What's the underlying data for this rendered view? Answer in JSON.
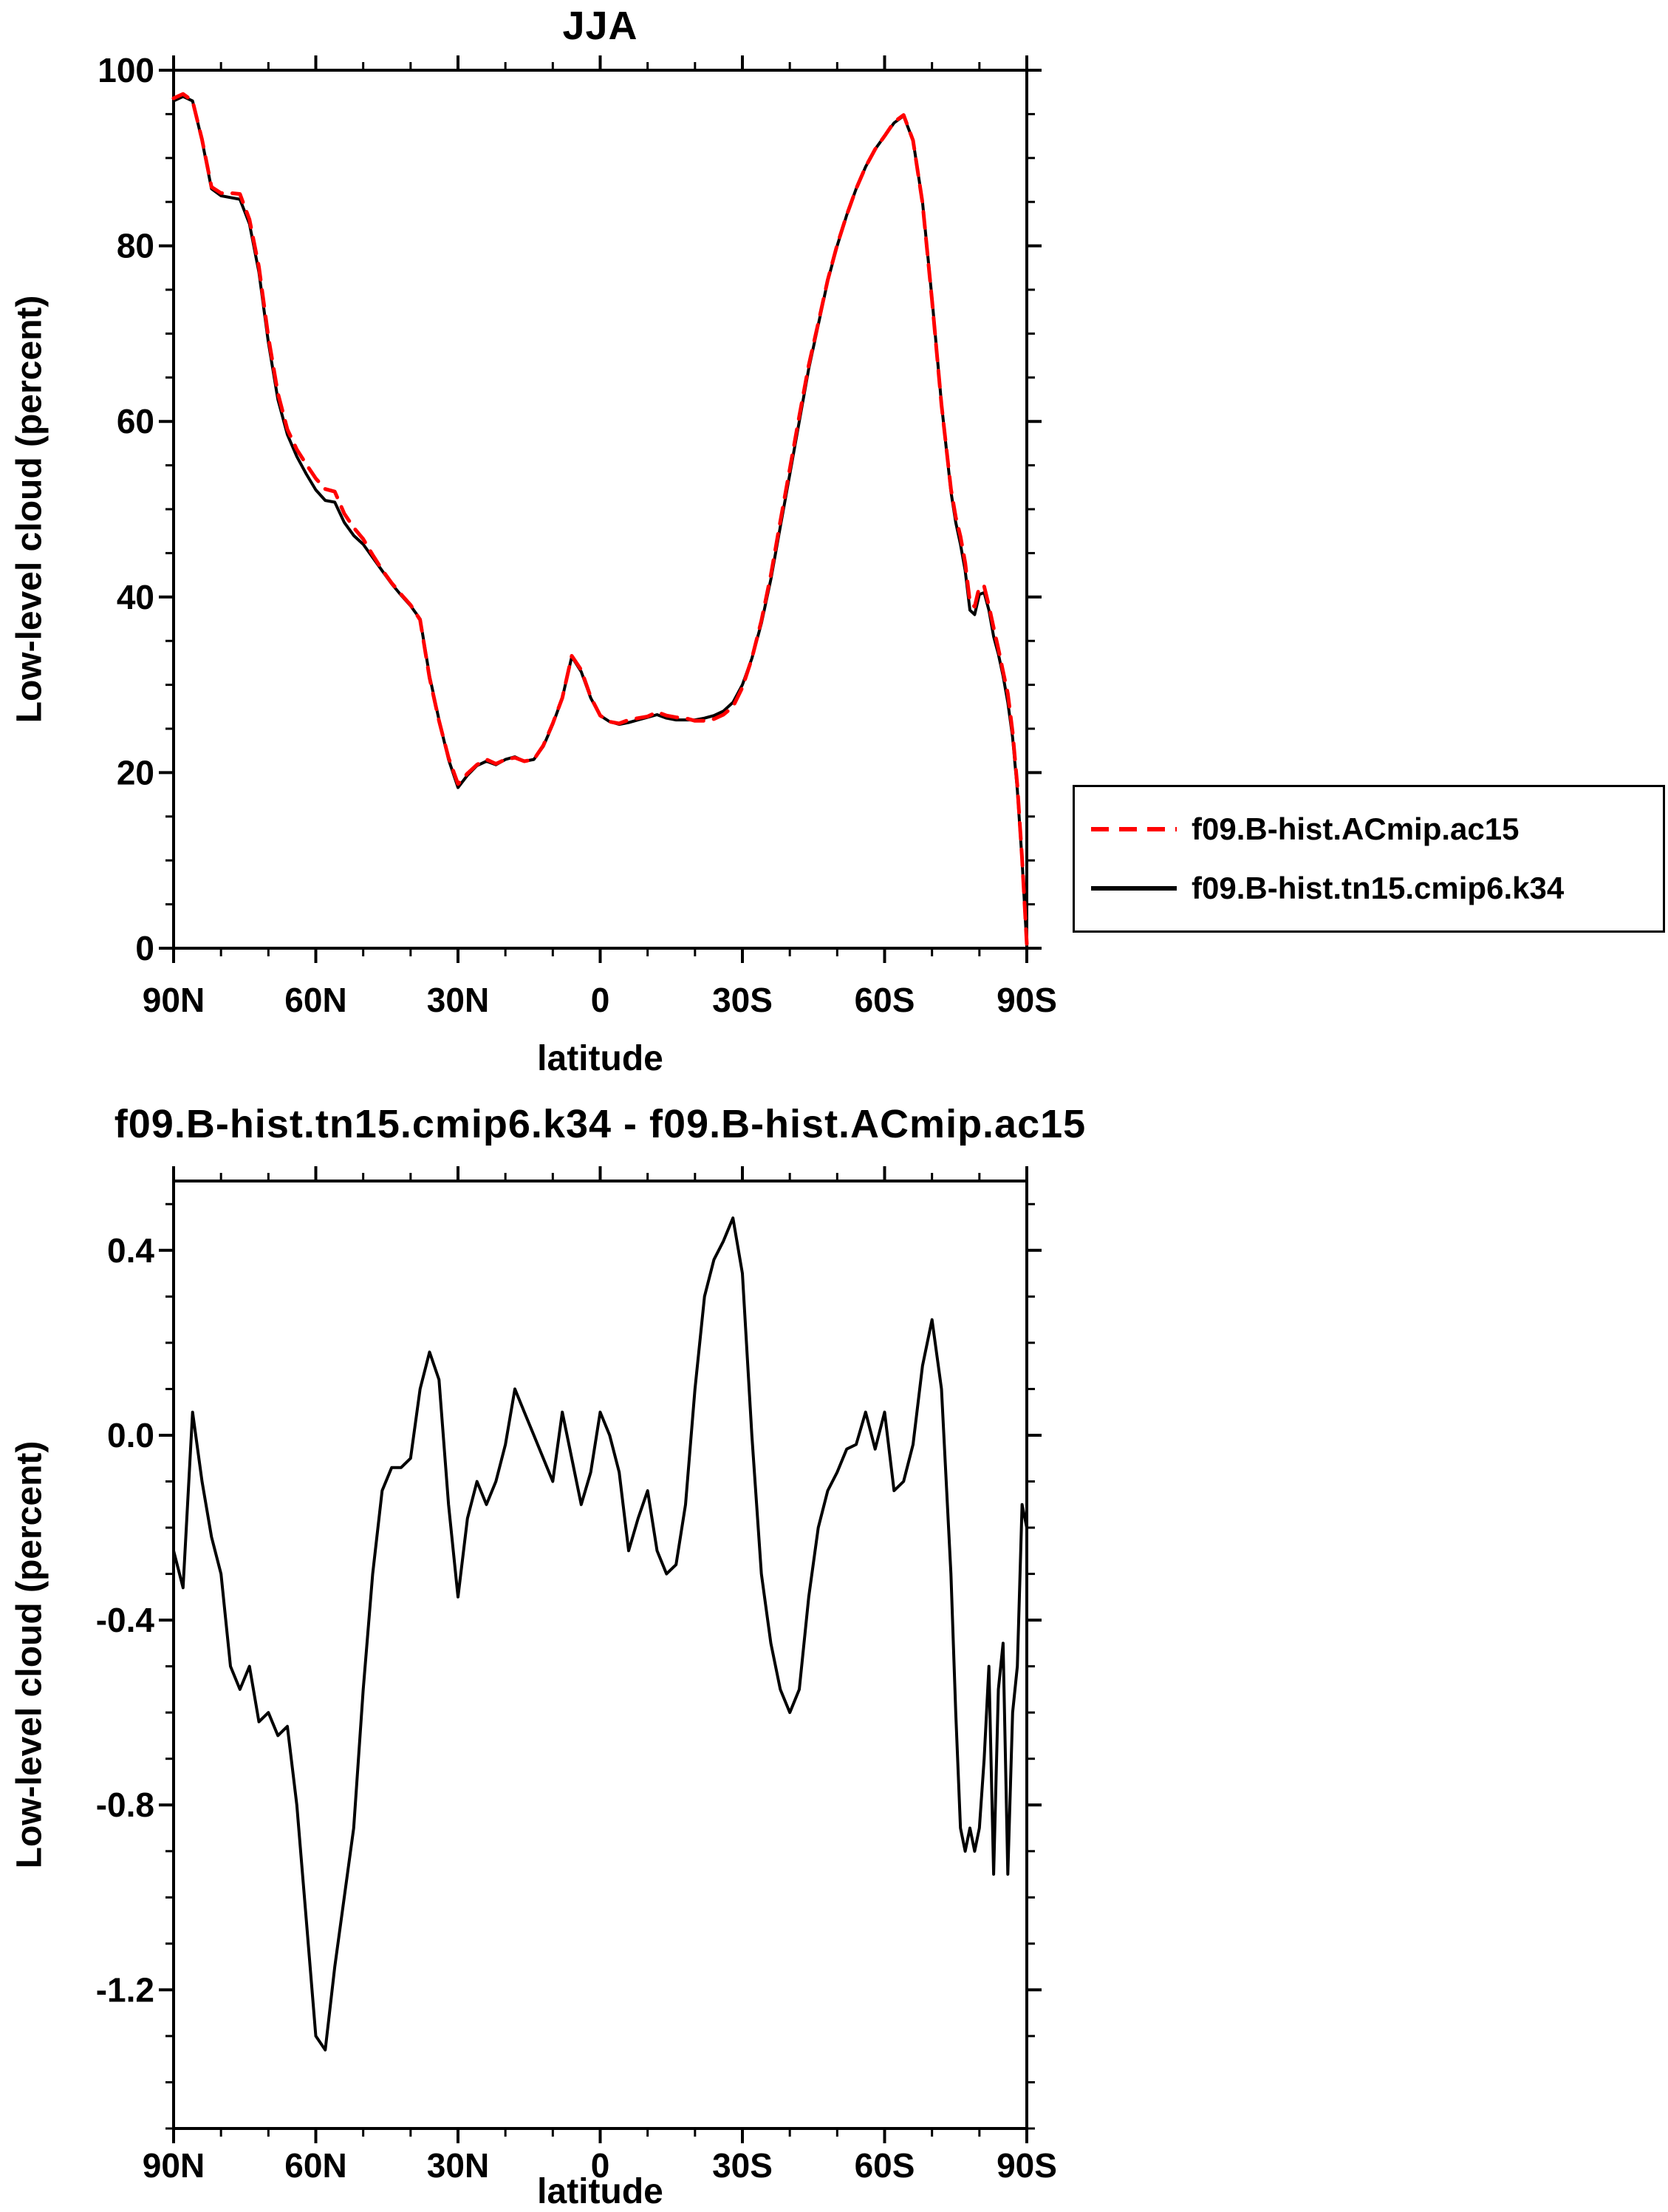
{
  "page": {
    "background": "#ffffff"
  },
  "top_chart": {
    "title": "JJA",
    "ylabel": "Low-level cloud (percent)",
    "xlabel": "latitude"
  },
  "bottom_chart": {
    "title": "f09.B-hist.tn15.cmip6.k34 - f09.B-hist.ACmip.ac15",
    "ylabel": "Low-level cloud (percent)",
    "xlabel": "latitude"
  },
  "legend": {
    "entries": [
      {
        "label": "f09.B-hist.ACmip.ac15",
        "color": "#ff0000",
        "style": "dashed"
      },
      {
        "label": "f09.B-hist.tn15.cmip6.k34",
        "color": "#000000",
        "style": "solid"
      }
    ]
  },
  "chart_data": [
    {
      "type": "line",
      "title": "JJA",
      "xlabel": "latitude",
      "ylabel": "Low-level cloud (percent)",
      "grid": false,
      "legend_position": "right-outside",
      "xlim": [
        90,
        -90
      ],
      "ylim": [
        0,
        100
      ],
      "xticks": [
        90,
        60,
        30,
        0,
        -30,
        -60,
        -90
      ],
      "xtick_labels": [
        "90N",
        "60N",
        "30N",
        "0",
        "30S",
        "60S",
        "90S"
      ],
      "yticks": [
        0,
        20,
        40,
        60,
        80,
        100
      ],
      "ytick_labels": [
        "0",
        "20",
        "40",
        "60",
        "80",
        "100"
      ],
      "x_minor_step": 10,
      "y_minor_step": 5,
      "x": [
        90,
        88,
        86,
        84,
        82,
        80,
        78,
        76,
        74,
        72,
        70,
        68,
        66,
        64,
        62,
        60,
        58,
        56,
        54,
        52,
        50,
        48,
        46,
        44,
        42,
        40,
        38,
        36,
        34,
        32,
        30,
        28,
        26,
        24,
        22,
        20,
        18,
        16,
        14,
        12,
        10,
        8,
        6,
        4,
        2,
        0,
        -2,
        -4,
        -6,
        -8,
        -10,
        -12,
        -14,
        -16,
        -18,
        -20,
        -22,
        -24,
        -26,
        -28,
        -30,
        -32,
        -34,
        -36,
        -38,
        -40,
        -42,
        -44,
        -46,
        -48,
        -50,
        -52,
        -54,
        -56,
        -58,
        -60,
        -62,
        -64,
        -66,
        -68,
        -70,
        -72,
        -74,
        -75,
        -76,
        -77,
        -78,
        -79,
        -80,
        -81,
        -82,
        -83,
        -84,
        -85,
        -86,
        -87,
        -88,
        -89,
        -90
      ],
      "series": [
        {
          "name": "f09.B-hist.ACmip.ac15",
          "color": "#ff0000",
          "dash": true,
          "values": [
            96.8,
            97.3,
            96.5,
            92.1,
            86.7,
            86,
            86,
            85.9,
            83,
            77.6,
            69.6,
            63.2,
            59.1,
            56.8,
            55.1,
            53.5,
            52.3,
            52,
            49.5,
            47.9,
            46.6,
            44.8,
            43.1,
            41.6,
            40.3,
            39.1,
            37.4,
            30.8,
            25.9,
            21.7,
            18.7,
            19.9,
            20.9,
            21.5,
            21,
            21.5,
            21.7,
            21.3,
            21.5,
            23.1,
            25.6,
            28.5,
            33.3,
            31.7,
            28.6,
            26.5,
            25.8,
            25.6,
            26,
            26.2,
            26.4,
            26.9,
            26.5,
            26.3,
            26.2,
            25.9,
            25.9,
            26.1,
            26.6,
            27.5,
            29.7,
            33,
            37.3,
            42.5,
            48.6,
            54.6,
            60.6,
            66.4,
            71.2,
            76.1,
            80.1,
            83.5,
            86.5,
            89,
            91,
            92.5,
            94.1,
            94.9,
            92,
            84.9,
            73.8,
            61.9,
            52.3,
            49.1,
            46.9,
            43.9,
            39.4,
            38.9,
            41.2,
            41.2,
            39,
            36.5,
            34.1,
            31.5,
            29,
            24.6,
            18.5,
            10.2,
            0.5
          ]
        },
        {
          "name": "f09.B-hist.tn15.cmip6.k34",
          "color": "#000000",
          "dash": false,
          "values": [
            96.5,
            97,
            96.5,
            92,
            86.5,
            85.7,
            85.5,
            85.3,
            82.5,
            77,
            69,
            62.5,
            58.5,
            56,
            54,
            52.2,
            51,
            50.8,
            48.5,
            47,
            46,
            44.5,
            43,
            41.5,
            40.2,
            39,
            37.5,
            31,
            26,
            21.5,
            18.3,
            19.7,
            20.8,
            21.3,
            20.9,
            21.5,
            21.8,
            21.3,
            21.5,
            23,
            25.5,
            28.5,
            33.2,
            31.5,
            28.5,
            26.5,
            25.8,
            25.5,
            25.7,
            26,
            26.3,
            26.6,
            26.2,
            26,
            26,
            26,
            26.2,
            26.5,
            27,
            28,
            30,
            33,
            37,
            42,
            48,
            54,
            60,
            66,
            71,
            76,
            80,
            83.5,
            86.5,
            89,
            91,
            92.5,
            94,
            94.8,
            92,
            85,
            74,
            62,
            52,
            48.5,
            46,
            43,
            38.5,
            38,
            40.3,
            40.5,
            38.5,
            35.5,
            33.5,
            31,
            28,
            24,
            18,
            10,
            0.3
          ]
        }
      ]
    },
    {
      "type": "line",
      "title": "f09.B-hist.tn15.cmip6.k34 - f09.B-hist.ACmip.ac15",
      "xlabel": "latitude",
      "ylabel": "Low-level cloud (percent)",
      "grid": false,
      "xlim": [
        90,
        -90
      ],
      "ylim": [
        -1.5,
        0.55
      ],
      "xticks": [
        90,
        60,
        30,
        0,
        -30,
        -60,
        -90
      ],
      "xtick_labels": [
        "90N",
        "60N",
        "30N",
        "0",
        "30S",
        "60S",
        "90S"
      ],
      "yticks": [
        0.4,
        0,
        -0.4,
        -0.8,
        -1.2
      ],
      "ytick_labels": [
        "0.4",
        "0.0",
        "-0.4",
        "-0.8",
        "-1.2"
      ],
      "x_minor_step": 10,
      "y_minor_step": 0.1,
      "x": [
        90,
        88,
        86,
        84,
        82,
        80,
        78,
        76,
        74,
        72,
        70,
        68,
        66,
        64,
        62,
        60,
        58,
        56,
        54,
        52,
        50,
        48,
        46,
        44,
        42,
        40,
        38,
        36,
        34,
        32,
        30,
        28,
        26,
        24,
        22,
        20,
        18,
        16,
        14,
        12,
        10,
        8,
        6,
        4,
        2,
        0,
        -2,
        -4,
        -6,
        -8,
        -10,
        -12,
        -14,
        -16,
        -18,
        -20,
        -22,
        -24,
        -26,
        -28,
        -30,
        -32,
        -34,
        -36,
        -38,
        -40,
        -42,
        -44,
        -46,
        -48,
        -50,
        -52,
        -54,
        -56,
        -58,
        -60,
        -62,
        -64,
        -66,
        -68,
        -70,
        -72,
        -74,
        -75,
        -76,
        -77,
        -78,
        -79,
        -80,
        -81,
        -82,
        -83,
        -84,
        -85,
        -86,
        -87,
        -88,
        -89,
        -90
      ],
      "series": [
        {
          "name": "f09.B-hist.tn15.cmip6.k34 - f09.B-hist.ACmip.ac15",
          "color": "#000000",
          "dash": false,
          "values": [
            -0.25,
            -0.33,
            0.05,
            -0.1,
            -0.22,
            -0.3,
            -0.5,
            -0.55,
            -0.5,
            -0.62,
            -0.6,
            -0.65,
            -0.63,
            -0.8,
            -1.05,
            -1.3,
            -1.33,
            -1.15,
            -1.0,
            -0.85,
            -0.55,
            -0.3,
            -0.12,
            -0.07,
            -0.07,
            -0.05,
            0.1,
            0.18,
            0.12,
            -0.15,
            -0.35,
            -0.18,
            -0.1,
            -0.15,
            -0.1,
            -0.02,
            0.1,
            0.05,
            0.0,
            -0.05,
            -0.1,
            0.05,
            -0.05,
            -0.15,
            -0.08,
            0.05,
            0.0,
            -0.08,
            -0.25,
            -0.18,
            -0.12,
            -0.25,
            -0.3,
            -0.28,
            -0.15,
            0.1,
            0.3,
            0.38,
            0.42,
            0.47,
            0.35,
            0.0,
            -0.3,
            -0.45,
            -0.55,
            -0.6,
            -0.55,
            -0.35,
            -0.2,
            -0.12,
            -0.08,
            -0.03,
            -0.02,
            0.05,
            -0.03,
            0.05,
            -0.12,
            -0.1,
            -0.02,
            0.15,
            0.25,
            0.1,
            -0.3,
            -0.6,
            -0.85,
            -0.9,
            -0.85,
            -0.9,
            -0.85,
            -0.7,
            -0.5,
            -0.95,
            -0.55,
            -0.45,
            -0.95,
            -0.6,
            -0.5,
            -0.15,
            -0.2
          ]
        }
      ]
    }
  ]
}
